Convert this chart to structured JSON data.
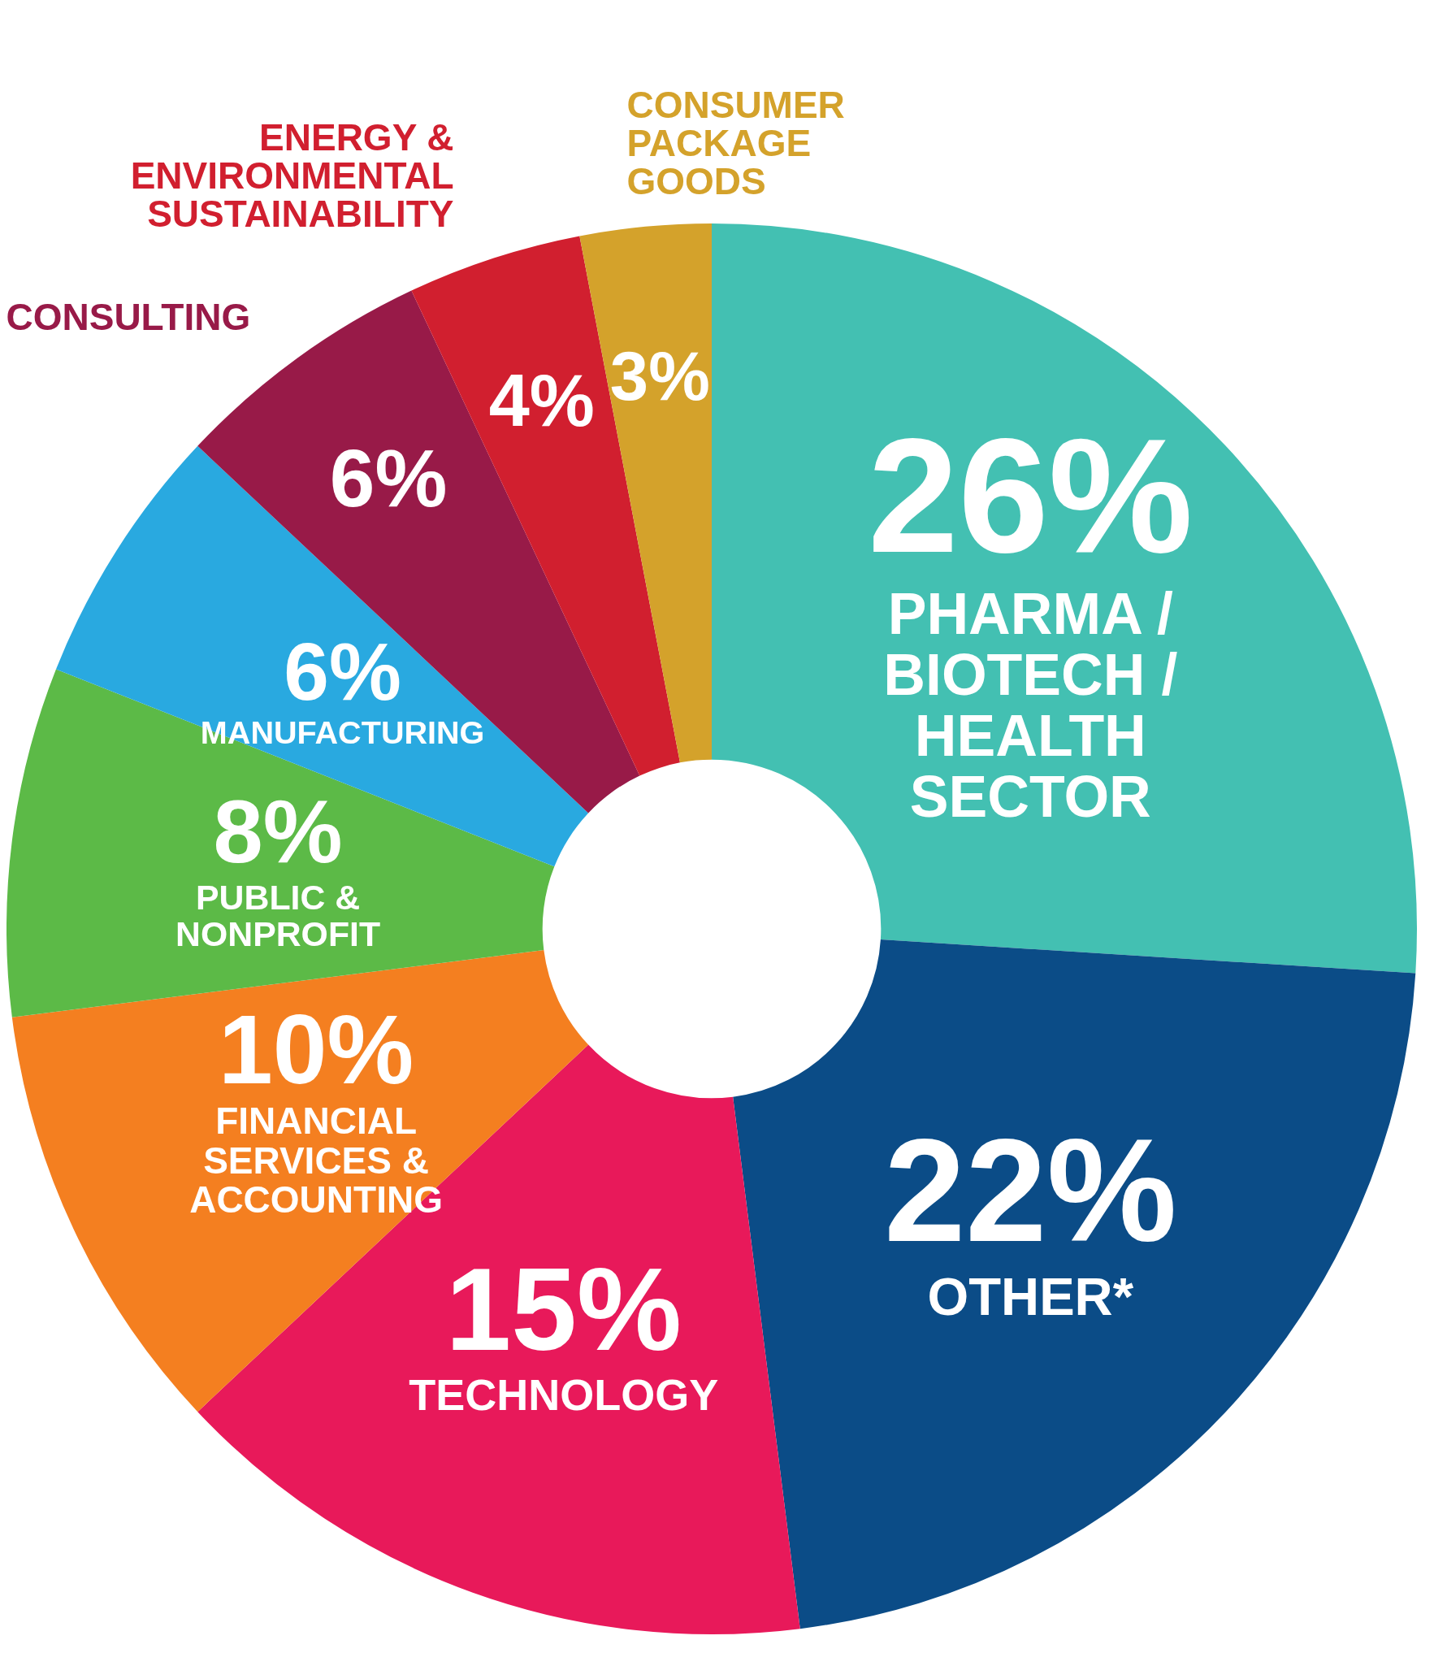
{
  "chart_data": {
    "type": "donut",
    "categories": [
      "PHARMA / BIOTECH / HEALTH SECTOR",
      "OTHER*",
      "TECHNOLOGY",
      "FINANCIAL SERVICES & ACCOUNTING",
      "PUBLIC & NONPROFIT",
      "MANUFACTURING",
      "CONSULTING",
      "ENERGY & ENVIRONMENTAL SUSTAINABILITY",
      "CONSUMER PACKAGE GOODS"
    ],
    "values": [
      26,
      22,
      15,
      10,
      8,
      6,
      6,
      4,
      3
    ],
    "value_labels": [
      "26%",
      "22%",
      "15%",
      "10%",
      "8%",
      "6%",
      "6%",
      "4%",
      "3%"
    ],
    "colors": [
      "#43c0b2",
      "#0b4c87",
      "#e8195a",
      "#f47f20",
      "#5cba47",
      "#29a9e0",
      "#981a48",
      "#d11f2f",
      "#d4a22b"
    ],
    "legend": false
  }
}
